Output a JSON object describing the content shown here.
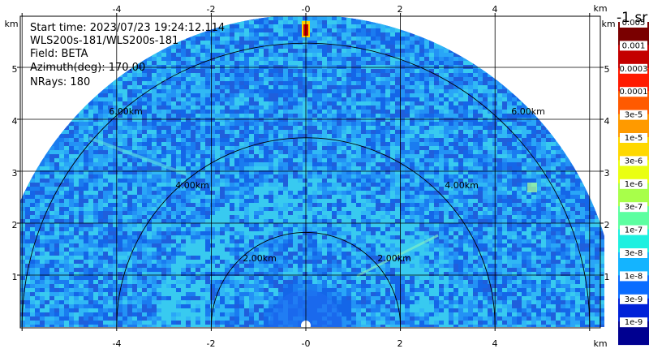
{
  "info": {
    "start_time": "Start time: 2023/07/23 19:24:12.114",
    "device": "WLS200s-181/WLS200s-181",
    "field": "Field: BETA",
    "azimuth": "Azimuth(deg): 170.00",
    "nrays": "NRays: 180"
  },
  "axes": {
    "x_unit": "km",
    "y_unit": "km",
    "x_ticks": [
      "-4",
      "-2",
      "-0",
      "2",
      "4"
    ],
    "y_ticks": [
      "1",
      "2",
      "3",
      "4",
      "5"
    ]
  },
  "rings": {
    "labels": [
      "2.00km",
      "4.00km",
      "6.00km"
    ]
  },
  "colorbar": {
    "unit": "-1 sr",
    "labels": [
      "0.005",
      "0.001",
      "0.0003",
      "0.0001",
      "3e-5",
      "1e-5",
      "3e-6",
      "1e-6",
      "3e-7",
      "1e-7",
      "3e-8",
      "1e-8",
      "3e-9",
      "1e-9"
    ],
    "colors": [
      "#7a0000",
      "#c40000",
      "#ff1a00",
      "#ff5a00",
      "#ff9a00",
      "#ffd800",
      "#eaff12",
      "#a8ff4a",
      "#5cffa0",
      "#1ef0e0",
      "#14b4ff",
      "#0a6cff",
      "#0022d8",
      "#000090"
    ]
  }
}
